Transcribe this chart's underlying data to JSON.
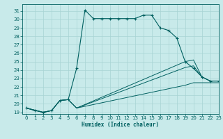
{
  "xlabel": "Humidex (Indice chaleur)",
  "bg_color": "#c8eaea",
  "line_color": "#006060",
  "grid_color": "#a8d4d4",
  "xlim": [
    -0.5,
    23
  ],
  "ylim": [
    18.8,
    31.8
  ],
  "yticks": [
    19,
    20,
    21,
    22,
    23,
    24,
    25,
    26,
    27,
    28,
    29,
    30,
    31
  ],
  "xticks": [
    0,
    1,
    2,
    3,
    4,
    5,
    6,
    7,
    8,
    9,
    10,
    11,
    12,
    13,
    14,
    15,
    16,
    17,
    18,
    19,
    20,
    21,
    22,
    23
  ],
  "series": [
    {
      "x": [
        0,
        1,
        2,
        3,
        4,
        5,
        6,
        7,
        8,
        9,
        10,
        11,
        12,
        13,
        14,
        15,
        16,
        17,
        18,
        19,
        20,
        21,
        22,
        23
      ],
      "y": [
        19.5,
        19.2,
        19.0,
        19.2,
        20.4,
        20.5,
        24.2,
        31.1,
        30.1,
        30.1,
        30.1,
        30.1,
        30.1,
        30.1,
        30.5,
        30.5,
        29.0,
        28.7,
        27.8,
        25.0,
        24.2,
        23.2,
        22.7,
        22.7
      ],
      "marker": "+"
    },
    {
      "x": [
        0,
        2,
        3,
        4,
        5,
        6,
        19,
        20,
        21,
        22,
        23
      ],
      "y": [
        19.5,
        19.0,
        19.2,
        20.4,
        20.5,
        19.5,
        24.3,
        24.5,
        23.2,
        22.7,
        22.7
      ],
      "marker": null
    },
    {
      "x": [
        0,
        2,
        3,
        4,
        5,
        6,
        19,
        20,
        21,
        22,
        23
      ],
      "y": [
        19.5,
        19.0,
        19.2,
        20.4,
        20.5,
        19.5,
        25.0,
        25.2,
        23.2,
        22.7,
        22.7
      ],
      "marker": null
    },
    {
      "x": [
        0,
        2,
        3,
        4,
        5,
        6,
        19,
        20,
        21,
        22,
        23
      ],
      "y": [
        19.5,
        19.0,
        19.2,
        20.4,
        20.5,
        19.5,
        22.2,
        22.5,
        22.5,
        22.5,
        22.5
      ],
      "marker": null
    }
  ]
}
